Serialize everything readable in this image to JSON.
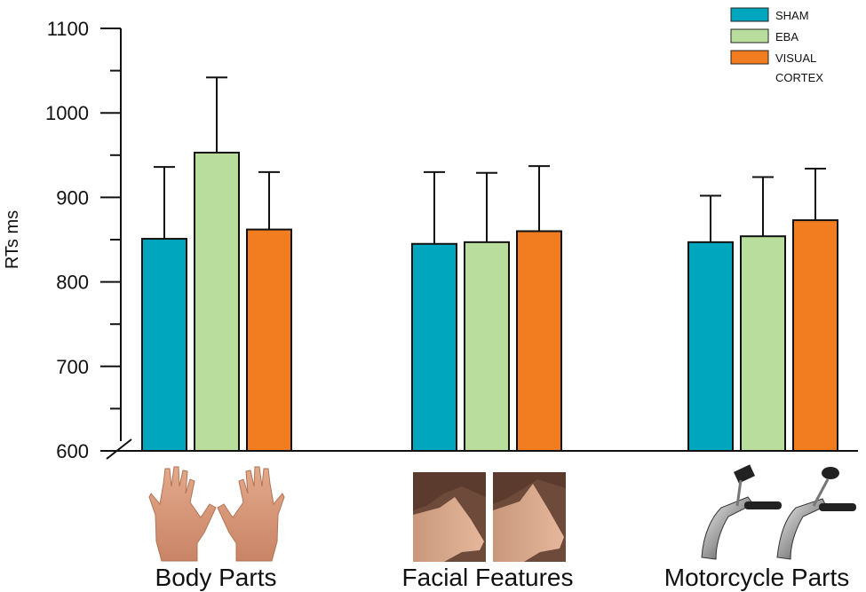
{
  "chart_data": {
    "type": "bar",
    "ylabel": "RTs ms",
    "ylim": [
      600,
      1100
    ],
    "yticks": [
      "1100",
      "1000",
      "900",
      "800",
      "700",
      "600"
    ],
    "categories": [
      "Body Parts",
      "Facial Features",
      "Motorcycle Parts"
    ],
    "series": [
      {
        "name": "SHAM",
        "color": "#00a6bd",
        "values": [
          851,
          845,
          847
        ],
        "errors": [
          85,
          85,
          55
        ]
      },
      {
        "name": "EBA",
        "color": "#b9dd9c",
        "values": [
          953,
          847,
          854
        ],
        "errors": [
          89,
          82,
          70
        ]
      },
      {
        "name": "VISUAL CORTEX",
        "color": "#f27d21",
        "values": [
          862,
          860,
          873
        ],
        "errors": [
          68,
          77,
          61
        ]
      }
    ],
    "legend_lines": [
      [
        "SHAM"
      ],
      [
        "EBA"
      ],
      [
        "VISUAL",
        "CORTEX"
      ]
    ],
    "legend_position": "top-right",
    "category_images": [
      "hands-photo",
      "nose-profile-photo",
      "motorcycle-handlebar-photo"
    ]
  }
}
